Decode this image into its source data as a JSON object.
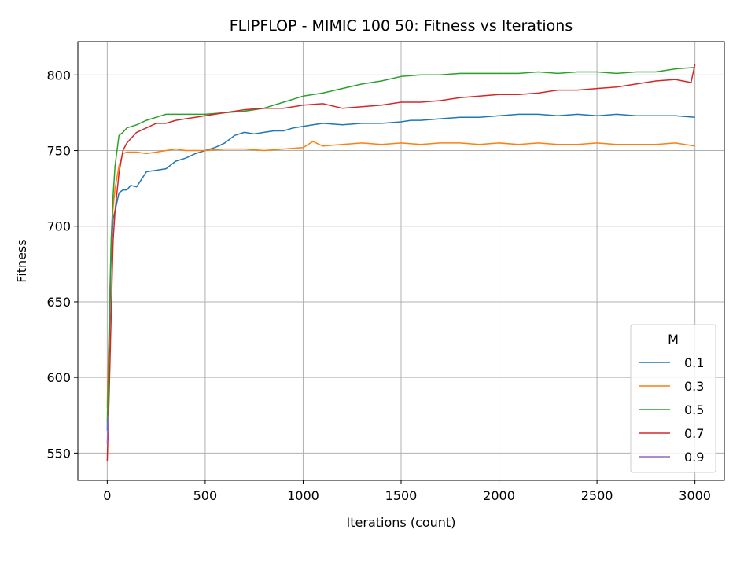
{
  "chart_data": {
    "type": "line",
    "title": "FLIPFLOP - MIMIC 100 50: Fitness vs Iterations",
    "xlabel": "Iterations (count)",
    "ylabel": "Fitness",
    "xlim": [
      -150,
      3150
    ],
    "ylim": [
      532,
      822
    ],
    "xticks": [
      0,
      500,
      1000,
      1500,
      2000,
      2500,
      3000
    ],
    "yticks": [
      550,
      600,
      650,
      700,
      750,
      800
    ],
    "grid": true,
    "legend": {
      "title": "M",
      "location": "lower right"
    },
    "series": [
      {
        "name": "0.1",
        "color": "#1f77b4",
        "x": [
          0,
          10,
          20,
          30,
          40,
          60,
          80,
          100,
          120,
          150,
          180,
          200,
          250,
          300,
          350,
          400,
          450,
          500,
          550,
          600,
          650,
          700,
          750,
          800,
          850,
          900,
          950,
          1000,
          1050,
          1100,
          1200,
          1300,
          1400,
          1500,
          1550,
          1600,
          1700,
          1800,
          1900,
          2000,
          2100,
          2200,
          2300,
          2400,
          2500,
          2600,
          2700,
          2800,
          2900,
          3000
        ],
        "values": [
          565,
          620,
          680,
          705,
          710,
          722,
          724,
          724,
          727,
          726,
          732,
          736,
          737,
          738,
          743,
          745,
          748,
          750,
          752,
          755,
          760,
          762,
          761,
          762,
          763,
          763,
          765,
          766,
          767,
          768,
          767,
          768,
          768,
          769,
          770,
          770,
          771,
          772,
          772,
          773,
          774,
          774,
          773,
          774,
          773,
          774,
          773,
          773,
          773,
          772
        ]
      },
      {
        "name": "0.3",
        "color": "#ff7f0e",
        "x": [
          0,
          10,
          20,
          30,
          40,
          60,
          80,
          100,
          150,
          200,
          250,
          300,
          350,
          400,
          450,
          500,
          600,
          700,
          800,
          900,
          1000,
          1050,
          1100,
          1200,
          1300,
          1400,
          1500,
          1600,
          1700,
          1800,
          1900,
          2000,
          2100,
          2200,
          2300,
          2400,
          2500,
          2600,
          2700,
          2800,
          2900,
          3000
        ],
        "values": [
          580,
          640,
          690,
          712,
          725,
          740,
          748,
          749,
          749,
          748,
          749,
          750,
          751,
          750,
          750,
          750,
          751,
          751,
          750,
          751,
          752,
          756,
          753,
          754,
          755,
          754,
          755,
          754,
          755,
          755,
          754,
          755,
          754,
          755,
          754,
          754,
          755,
          754,
          754,
          754,
          755,
          753
        ]
      },
      {
        "name": "0.5",
        "color": "#2ca02c",
        "x": [
          0,
          10,
          20,
          30,
          40,
          60,
          80,
          100,
          150,
          200,
          250,
          300,
          350,
          400,
          500,
          600,
          700,
          800,
          900,
          1000,
          1100,
          1200,
          1300,
          1400,
          1500,
          1600,
          1700,
          1800,
          1900,
          2000,
          2100,
          2200,
          2300,
          2400,
          2500,
          2600,
          2700,
          2800,
          2900,
          3000
        ],
        "values": [
          570,
          630,
          690,
          720,
          740,
          760,
          762,
          765,
          767,
          770,
          772,
          774,
          774,
          774,
          774,
          775,
          776,
          778,
          782,
          786,
          788,
          791,
          794,
          796,
          799,
          800,
          800,
          801,
          801,
          801,
          801,
          802,
          801,
          802,
          802,
          801,
          802,
          802,
          804,
          805
        ]
      },
      {
        "name": "0.7",
        "color": "#d62728",
        "x": [
          0,
          10,
          20,
          30,
          40,
          60,
          80,
          100,
          150,
          200,
          250,
          300,
          350,
          400,
          500,
          600,
          700,
          800,
          900,
          1000,
          1100,
          1200,
          1300,
          1400,
          1500,
          1600,
          1700,
          1800,
          1900,
          2000,
          2100,
          2200,
          2300,
          2400,
          2500,
          2600,
          2700,
          2800,
          2900,
          2980,
          3000
        ],
        "values": [
          545,
          590,
          640,
          690,
          710,
          735,
          750,
          755,
          762,
          765,
          768,
          768,
          770,
          771,
          773,
          775,
          777,
          778,
          778,
          780,
          781,
          778,
          779,
          780,
          782,
          782,
          783,
          785,
          786,
          787,
          787,
          788,
          790,
          790,
          791,
          792,
          794,
          796,
          797,
          795,
          807
        ]
      },
      {
        "name": "0.9",
        "color": "#9467bd",
        "x": [
          0,
          5
        ],
        "values": [
          556,
          575
        ]
      }
    ]
  }
}
